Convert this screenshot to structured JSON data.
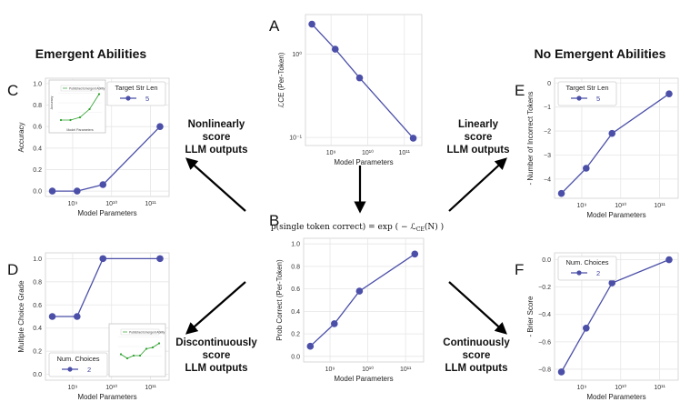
{
  "headings": {
    "left": "Emergent Abilities",
    "right": "No Emergent Abilities"
  },
  "descriptions": {
    "top_left": [
      "Nonlinearly",
      "score",
      "LLM outputs"
    ],
    "top_right": [
      "Linearly",
      "score",
      "LLM outputs"
    ],
    "bottom_left": [
      "Discontinuously",
      "score",
      "LLM outputs"
    ],
    "bottom_right": [
      "Continuously",
      "score",
      "LLM outputs"
    ]
  },
  "formula": "p(single token correct) = exp ( − ℒ",
  "formula_sub": "CE",
  "formula_tail": "(N) )",
  "colors": {
    "series": "#4b4fa8",
    "grid": "#e6e6e6",
    "inset_line": "#2ca02c",
    "arrow": "#000000"
  },
  "chart_data": [
    {
      "id": "A",
      "type": "line",
      "log_x": true,
      "log_y": true,
      "xlabel": "Model Parameters",
      "ylabel": "ℒCE (Per-Token)",
      "xlim": [
        200000000.0,
        300000000000.0
      ],
      "ylim": [
        0.08,
        3.0
      ],
      "x": [
        300000000.0,
        1300000000.0,
        6000000000.0,
        175000000000.0
      ],
      "y": [
        2.3,
        1.15,
        0.52,
        0.098
      ],
      "xticks": [
        {
          "v": 1000000000.0,
          "label": "10⁹"
        },
        {
          "v": 10000000000.0,
          "label": "10¹⁰"
        },
        {
          "v": 100000000000.0,
          "label": "10¹¹"
        }
      ],
      "yticks": [
        {
          "v": 1,
          "label": "10⁰"
        },
        {
          "v": 0.1,
          "label": "10⁻¹"
        }
      ]
    },
    {
      "id": "B",
      "type": "line",
      "log_x": true,
      "xlabel": "Model Parameters",
      "ylabel": "Prob Correct (Per-Token)",
      "xlim": [
        200000000.0,
        300000000000.0
      ],
      "ylim": [
        -0.05,
        1.05
      ],
      "x": [
        300000000.0,
        1300000000.0,
        6000000000.0,
        175000000000.0
      ],
      "y": [
        0.09,
        0.29,
        0.58,
        0.91
      ],
      "xticks": [
        {
          "v": 1000000000.0,
          "label": "10⁹"
        },
        {
          "v": 10000000000.0,
          "label": "10¹⁰"
        },
        {
          "v": 100000000000.0,
          "label": "10¹¹"
        }
      ],
      "yticks": [
        {
          "v": 0,
          "label": "0.0"
        },
        {
          "v": 0.2,
          "label": "0.2"
        },
        {
          "v": 0.4,
          "label": "0.4"
        },
        {
          "v": 0.6,
          "label": "0.6"
        },
        {
          "v": 0.8,
          "label": "0.8"
        },
        {
          "v": 1.0,
          "label": "1.0"
        }
      ]
    },
    {
      "id": "C",
      "type": "line",
      "log_x": true,
      "xlabel": "Model Parameters",
      "ylabel": "Accuracy",
      "xlim": [
        200000000.0,
        300000000000.0
      ],
      "ylim": [
        -0.05,
        1.05
      ],
      "x": [
        300000000.0,
        1300000000.0,
        6000000000.0,
        175000000000.0
      ],
      "y": [
        0.0,
        0.0,
        0.06,
        0.6
      ],
      "xticks": [
        {
          "v": 1000000000.0,
          "label": "10⁹"
        },
        {
          "v": 10000000000.0,
          "label": "10¹⁰"
        },
        {
          "v": 100000000000.0,
          "label": "10¹¹"
        }
      ],
      "yticks": [
        {
          "v": 0,
          "label": "0.0"
        },
        {
          "v": 0.2,
          "label": "0.2"
        },
        {
          "v": 0.4,
          "label": "0.4"
        },
        {
          "v": 0.6,
          "label": "0.6"
        },
        {
          "v": 0.8,
          "label": "0.8"
        },
        {
          "v": 1.0,
          "label": "1.0"
        }
      ],
      "legend": {
        "title": "Target Str Len",
        "entry": "5",
        "placement": "top-right"
      },
      "inset": {
        "placement": "top-left",
        "legend_label": "Published Emergent Ability",
        "xlabel": "Model Parameters",
        "ylabel": "Accuracy",
        "x": [
          1,
          2,
          3,
          4,
          5
        ],
        "y": [
          0.0,
          0.0,
          0.1,
          0.4,
          0.95
        ]
      }
    },
    {
      "id": "D",
      "type": "line",
      "log_x": true,
      "xlabel": "Model Parameters",
      "ylabel": "Multiple Choice Grade",
      "xlim": [
        200000000.0,
        300000000000.0
      ],
      "ylim": [
        -0.05,
        1.05
      ],
      "x": [
        300000000.0,
        1300000000.0,
        6000000000.0,
        175000000000.0
      ],
      "y": [
        0.5,
        0.5,
        1.0,
        1.0
      ],
      "xticks": [
        {
          "v": 1000000000.0,
          "label": "10⁹"
        },
        {
          "v": 10000000000.0,
          "label": "10¹⁰"
        },
        {
          "v": 100000000000.0,
          "label": "10¹¹"
        }
      ],
      "yticks": [
        {
          "v": 0,
          "label": "0.0"
        },
        {
          "v": 0.2,
          "label": "0.2"
        },
        {
          "v": 0.4,
          "label": "0.4"
        },
        {
          "v": 0.6,
          "label": "0.6"
        },
        {
          "v": 0.8,
          "label": "0.8"
        },
        {
          "v": 1.0,
          "label": "1.0"
        }
      ],
      "legend": {
        "title": "Num. Choices",
        "entry": "2",
        "placement": "bottom-left"
      },
      "inset": {
        "placement": "bottom-right",
        "legend_label": "Published Emergent Ability",
        "xlabel": "",
        "ylabel": "",
        "x": [
          1,
          2,
          3,
          4,
          5,
          6,
          7
        ],
        "y": [
          0.35,
          0.2,
          0.3,
          0.3,
          0.55,
          0.6,
          0.75
        ]
      }
    },
    {
      "id": "E",
      "type": "line",
      "log_x": true,
      "xlabel": "Model Parameters",
      "ylabel": "- Number of Incorrect Tokens",
      "xlim": [
        200000000.0,
        300000000000.0
      ],
      "ylim": [
        -4.8,
        0.2
      ],
      "x": [
        300000000.0,
        1300000000.0,
        6000000000.0,
        175000000000.0
      ],
      "y": [
        -4.6,
        -3.55,
        -2.1,
        -0.45
      ],
      "xticks": [
        {
          "v": 1000000000.0,
          "label": "10⁹"
        },
        {
          "v": 10000000000.0,
          "label": "10¹⁰"
        },
        {
          "v": 100000000000.0,
          "label": "10¹¹"
        }
      ],
      "yticks": [
        {
          "v": 0,
          "label": "0"
        },
        {
          "v": -1,
          "label": "−1"
        },
        {
          "v": -2,
          "label": "−2"
        },
        {
          "v": -3,
          "label": "−3"
        },
        {
          "v": -4,
          "label": "−4"
        }
      ],
      "legend": {
        "title": "Target Str Len",
        "entry": "5",
        "placement": "top-left"
      }
    },
    {
      "id": "F",
      "type": "line",
      "log_x": true,
      "xlabel": "Model Parameters",
      "ylabel": "- Brier Score",
      "xlim": [
        200000000.0,
        300000000000.0
      ],
      "ylim": [
        -0.88,
        0.05
      ],
      "x": [
        300000000.0,
        1300000000.0,
        6000000000.0,
        175000000000.0
      ],
      "y": [
        -0.82,
        -0.5,
        -0.17,
        0.0
      ],
      "xticks": [
        {
          "v": 1000000000.0,
          "label": "10⁹"
        },
        {
          "v": 10000000000.0,
          "label": "10¹⁰"
        },
        {
          "v": 100000000000.0,
          "label": "10¹¹"
        }
      ],
      "yticks": [
        {
          "v": 0,
          "label": "0.0"
        },
        {
          "v": -0.2,
          "label": "−0.2"
        },
        {
          "v": -0.4,
          "label": "−0.4"
        },
        {
          "v": -0.6,
          "label": "−0.6"
        },
        {
          "v": -0.8,
          "label": "−0.8"
        }
      ],
      "legend": {
        "title": "Num. Choices",
        "entry": "2",
        "placement": "top-left"
      }
    }
  ]
}
